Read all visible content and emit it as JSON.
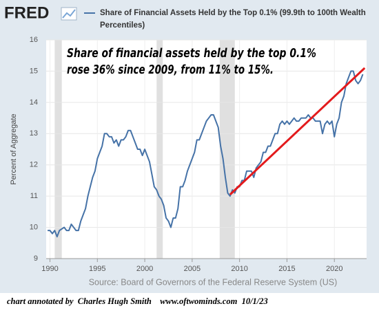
{
  "logo": "FRED",
  "source": "Source: Board of Governors of the Federal Reserve System (US)",
  "footer": "chart annotated by  Charles Hugh Smith    www.oftwominds.com  10/1/23",
  "chart_data": {
    "type": "line",
    "annotation": [
      "Share of financial assets held by the top 0.1%",
      "rose 36% since 2009, from 11% to 15%."
    ],
    "y_label": "Percent of Aggregate",
    "xlim": [
      1989.6,
      2023.4
    ],
    "ylim": [
      9,
      16
    ],
    "xticks": [
      1990,
      1995,
      2000,
      2005,
      2010,
      2015,
      2020
    ],
    "yticks": [
      9,
      10,
      11,
      12,
      13,
      14,
      15,
      16
    ],
    "grid": true,
    "recessions": [
      [
        1990.5,
        1991.25
      ],
      [
        2001.25,
        2001.9
      ],
      [
        2007.9,
        2009.5
      ]
    ],
    "x": [
      1989.75,
      1990,
      1990.25,
      1990.5,
      1990.75,
      1991,
      1991.5,
      1991.75,
      1992,
      1992.25,
      1992.5,
      1992.75,
      1993,
      1993.25,
      1993.5,
      1993.75,
      1994,
      1994.25,
      1994.5,
      1994.75,
      1995,
      1995.25,
      1995.5,
      1995.75,
      1996,
      1996.25,
      1996.5,
      1996.75,
      1997,
      1997.25,
      1997.5,
      1997.75,
      1998,
      1998.25,
      1998.5,
      1998.75,
      1999,
      1999.25,
      1999.5,
      1999.75,
      2000,
      2000.25,
      2000.5,
      2000.75,
      2001,
      2001.25,
      2001.5,
      2001.75,
      2002,
      2002.25,
      2002.5,
      2002.75,
      2003,
      2003.25,
      2003.5,
      2003.75,
      2004,
      2004.25,
      2004.5,
      2004.75,
      2005,
      2005.25,
      2005.5,
      2005.75,
      2006,
      2006.25,
      2006.5,
      2006.75,
      2007,
      2007.25,
      2007.5,
      2007.75,
      2008,
      2008.25,
      2008.5,
      2008.75,
      2009,
      2009.25,
      2009.5,
      2009.75,
      2010,
      2010.25,
      2010.5,
      2010.75,
      2011,
      2011.25,
      2011.5,
      2011.75,
      2012,
      2012.25,
      2012.5,
      2012.75,
      2013,
      2013.25,
      2013.5,
      2013.75,
      2014,
      2014.25,
      2014.5,
      2014.75,
      2015,
      2015.25,
      2015.5,
      2015.75,
      2016,
      2016.25,
      2016.5,
      2016.75,
      2017,
      2017.25,
      2017.5,
      2017.75,
      2018,
      2018.25,
      2018.5,
      2018.75,
      2019,
      2019.25,
      2019.5,
      2019.75,
      2020,
      2020.25,
      2020.5,
      2020.75,
      2021,
      2021.25,
      2021.5,
      2021.75,
      2022,
      2022.25,
      2022.5,
      2022.75,
      2023
    ],
    "series": [
      {
        "name": "Share of Financial Assets Held by the Top 0.1% (99.9th to 100th Wealth Percentiles)",
        "color": "#4572a7",
        "values": [
          9.9,
          9.9,
          9.8,
          9.9,
          9.7,
          9.9,
          10.0,
          9.9,
          9.9,
          10.1,
          10.0,
          9.9,
          9.9,
          10.2,
          10.4,
          10.6,
          11.0,
          11.3,
          11.6,
          11.8,
          12.2,
          12.4,
          12.6,
          13.0,
          13.0,
          12.9,
          12.9,
          12.7,
          12.8,
          12.6,
          12.8,
          12.8,
          12.9,
          13.1,
          13.1,
          12.9,
          12.7,
          12.5,
          12.5,
          12.3,
          12.5,
          12.3,
          12.1,
          11.7,
          11.3,
          11.2,
          11.0,
          10.9,
          10.7,
          10.3,
          10.2,
          10.0,
          10.3,
          10.3,
          10.6,
          11.3,
          11.3,
          11.5,
          11.8,
          12.0,
          12.2,
          12.4,
          12.8,
          12.8,
          13.0,
          13.2,
          13.4,
          13.5,
          13.6,
          13.6,
          13.4,
          13.2,
          12.6,
          12.2,
          11.6,
          11.1,
          11.0,
          11.2,
          11.1,
          11.3,
          11.3,
          11.5,
          11.5,
          11.8,
          11.8,
          11.8,
          11.6,
          11.9,
          12.0,
          12.1,
          12.4,
          12.4,
          12.6,
          12.6,
          12.8,
          13.0,
          13.0,
          13.3,
          13.4,
          13.3,
          13.4,
          13.3,
          13.4,
          13.5,
          13.4,
          13.4,
          13.5,
          13.5,
          13.5,
          13.6,
          13.5,
          13.5,
          13.4,
          13.4,
          13.4,
          13.0,
          13.3,
          13.4,
          13.3,
          13.4,
          12.9,
          13.3,
          13.5,
          14.0,
          14.2,
          14.6,
          14.8,
          15.0,
          15.0,
          14.7,
          14.6,
          14.7,
          14.9
        ]
      }
    ],
    "trend_line": {
      "color": "#e31a1c",
      "x": [
        2009,
        2023.2
      ],
      "values": [
        11.05,
        15.1
      ]
    }
  }
}
